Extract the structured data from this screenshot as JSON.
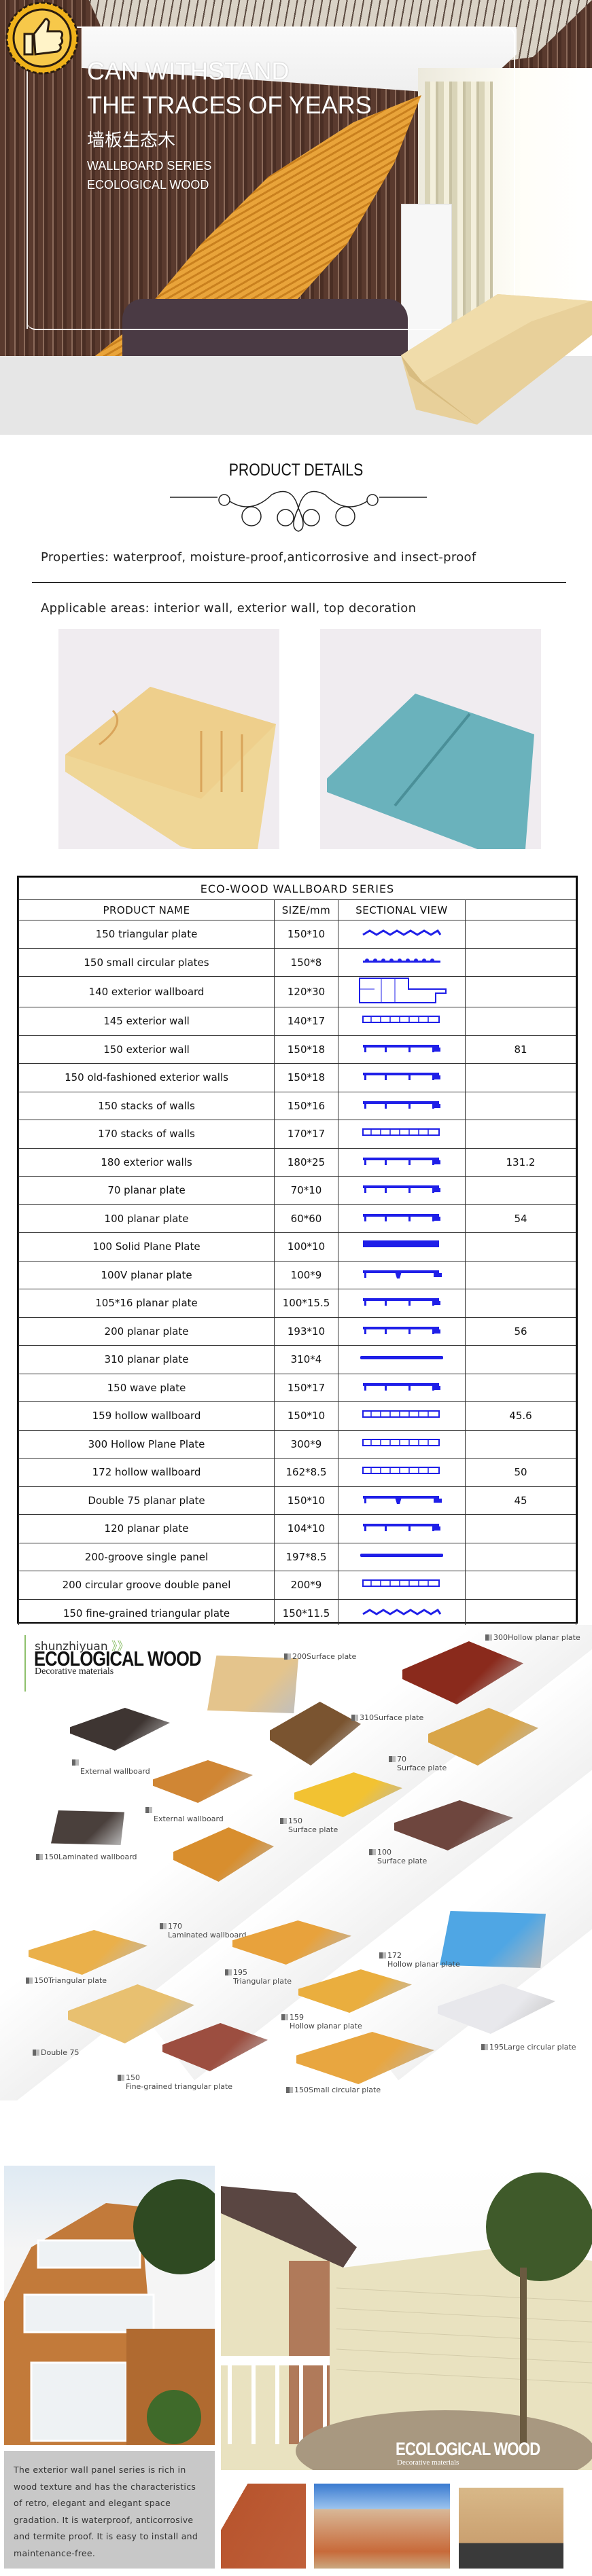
{
  "hero": {
    "line1": "CAN WITHSTAND",
    "line2": "THE TRACES OF YEARS",
    "chinese": "墙板生态木",
    "series": "WALLBOARD SERIES",
    "material": "ECOLOGICAL WOOD",
    "badge_icon": "thumbs-up-icon"
  },
  "details": {
    "title": "PRODUCT DETAILS",
    "properties": "Properties: waterproof, moisture-proof,anticorrosive and insect-proof",
    "areas": "Applicable areas: interior wall, exterior wall, top decoration"
  },
  "table": {
    "title": "ECO-WOOD WALLBOARD SERIES",
    "headers": [
      "PRODUCT NAME",
      "SIZE/mm",
      "SECTIONAL VIEW",
      ""
    ],
    "profile_color": "#1f1fe8",
    "rows": [
      {
        "name": "150 triangular plate",
        "size": "150*10",
        "profile": "triangular",
        "value": ""
      },
      {
        "name": "150 small circular plates",
        "size": "150*8",
        "profile": "circular",
        "value": ""
      },
      {
        "name": "140 exterior wallboard",
        "size": "120*30",
        "profile": "box",
        "value": ""
      },
      {
        "name": "145 exterior wall",
        "size": "140*17",
        "profile": "hollow",
        "value": ""
      },
      {
        "name": "150 exterior wall",
        "size": "150*18",
        "profile": "ribbed",
        "value": "81"
      },
      {
        "name": "150 old-fashioned exterior walls",
        "size": "150*18",
        "profile": "ribbed",
        "value": ""
      },
      {
        "name": "150 stacks of walls",
        "size": "150*16",
        "profile": "ribbed",
        "value": ""
      },
      {
        "name": "170 stacks of walls",
        "size": "170*17",
        "profile": "hollow",
        "value": ""
      },
      {
        "name": "180 exterior walls",
        "size": "180*25",
        "profile": "ribbed",
        "value": "131.2"
      },
      {
        "name": "70 planar plate",
        "size": "70*10",
        "profile": "ribbed",
        "value": ""
      },
      {
        "name": "100 planar plate",
        "size": "60*60",
        "profile": "ribbed",
        "value": "54"
      },
      {
        "name": "100 Solid Plane Plate",
        "size": "100*10",
        "profile": "solid",
        "value": ""
      },
      {
        "name": "100V planar plate",
        "size": "100*9",
        "profile": "v",
        "value": ""
      },
      {
        "name": "105*16 planar plate",
        "size": "100*15.5",
        "profile": "ribbed",
        "value": ""
      },
      {
        "name": "200 planar plate",
        "size": "193*10",
        "profile": "ribbed",
        "value": "56"
      },
      {
        "name": "310 planar plate",
        "size": "310*4",
        "profile": "flat",
        "value": ""
      },
      {
        "name": "150 wave plate",
        "size": "150*17",
        "profile": "ribbed",
        "value": ""
      },
      {
        "name": "159 hollow wallboard",
        "size": "150*10",
        "profile": "hollow",
        "value": "45.6"
      },
      {
        "name": "300 Hollow Plane Plate",
        "size": "300*9",
        "profile": "hollow",
        "value": ""
      },
      {
        "name": "172 hollow wallboard",
        "size": "162*8.5",
        "profile": "hollow",
        "value": "50"
      },
      {
        "name": "Double 75 planar plate",
        "size": "150*10",
        "profile": "v",
        "value": "45"
      },
      {
        "name": "120 planar plate",
        "size": "104*10",
        "profile": "ribbed",
        "value": ""
      },
      {
        "name": "200-groove single panel",
        "size": "197*8.5",
        "profile": "flat",
        "value": ""
      },
      {
        "name": "200 circular groove double panel",
        "size": "200*9",
        "profile": "hollow",
        "value": ""
      },
      {
        "name": "150 fine-grained triangular plate",
        "size": "150*11.5",
        "profile": "triangular",
        "value": ""
      }
    ]
  },
  "catalog": {
    "brand": "shunzhiyuan",
    "brand_arrows": "》》",
    "title": "ECOLOGICAL WOOD",
    "subtitle": "Decorative materials",
    "accent": "#8ec06c",
    "items": [
      {
        "num": "300",
        "label": "Hollow planar plate",
        "color": "#8a2a1c"
      },
      {
        "num": "200",
        "label": "Surface plate",
        "color": "#e4c48c"
      },
      {
        "num": "310",
        "label": "Surface plate",
        "color": "#7a5430"
      },
      {
        "num": "",
        "label": "External wallboard",
        "color": "#3e3532"
      },
      {
        "num": "70",
        "label": "Surface plate",
        "color": "#d9a548"
      },
      {
        "num": "",
        "label": "External wallboard",
        "color": "#d08634"
      },
      {
        "num": "150",
        "label": "Surface plate",
        "color": "#f2c232"
      },
      {
        "num": "150",
        "label": "Laminated wallboard",
        "color": "#4a403c"
      },
      {
        "num": "100",
        "label": "Surface plate",
        "color": "#6e463e"
      },
      {
        "num": "170",
        "label": "Laminated wallboard",
        "color": "#d88e2e"
      },
      {
        "num": "150",
        "label": "Triangular plate",
        "color": "#eab04a"
      },
      {
        "num": "195",
        "label": "Triangular plate",
        "color": "#e8a23c"
      },
      {
        "num": "172",
        "label": "Hollow planar plate",
        "color": "#4fa6e4"
      },
      {
        "num": "159",
        "label": "Hollow planar plate",
        "color": "#eaae3e"
      },
      {
        "num": "195",
        "label": "Large circular plate",
        "color": "#e8e8ec"
      },
      {
        "num": "",
        "label": "Double 75",
        "color": "#e8c070"
      },
      {
        "num": "150",
        "label": "Fine-grained triangular plate",
        "color": "#9c4e40"
      },
      {
        "num": "150",
        "label": "Small circular plate",
        "color": "#e8a640"
      }
    ]
  },
  "bottom": {
    "description": "The exterior wall panel series is rich in wood texture and has the characteristics of retro, elegant and elegant space gradation. It is waterproof, anticorrosive and termite proof. It is easy to install and maintenance-free.",
    "overlay_title": "ECOLOGICAL WOOD",
    "overlay_subtitle": "Decorative materials"
  }
}
